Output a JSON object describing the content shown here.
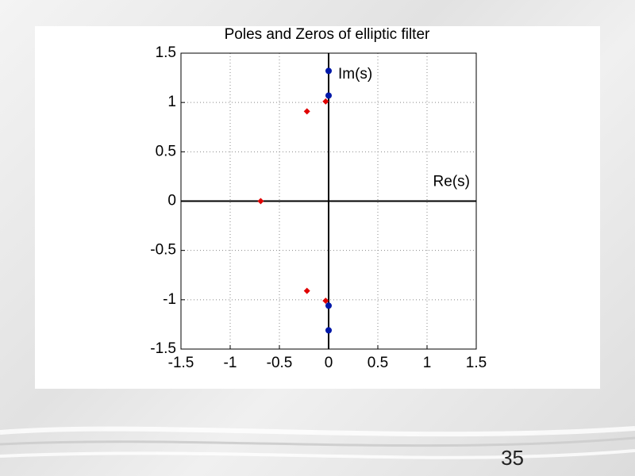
{
  "chart_data": {
    "type": "scatter",
    "title": "Poles and Zeros of elliptic filter",
    "annotations": [
      "Im(s)",
      "Re(s)"
    ],
    "xlim": [
      -1.5,
      1.5
    ],
    "ylim": [
      -1.5,
      1.5
    ],
    "xticks": [
      -1.5,
      -1,
      -0.5,
      0,
      0.5,
      1,
      1.5
    ],
    "yticks": [
      -1.5,
      -1,
      -0.5,
      0,
      0.5,
      1,
      1.5
    ],
    "grid": true,
    "series": [
      {
        "marker": "diamond",
        "color": "#e00000",
        "x": [
          -0.69,
          -0.22,
          -0.03,
          -0.22,
          -0.03
        ],
        "values": [
          0,
          0.91,
          1.01,
          -0.91,
          -1.01
        ]
      },
      {
        "marker": "circle",
        "color": "#0018a8",
        "x": [
          0,
          0,
          0,
          0
        ],
        "values": [
          1.32,
          1.07,
          -1.06,
          -1.31
        ]
      }
    ]
  },
  "page_number": "35"
}
